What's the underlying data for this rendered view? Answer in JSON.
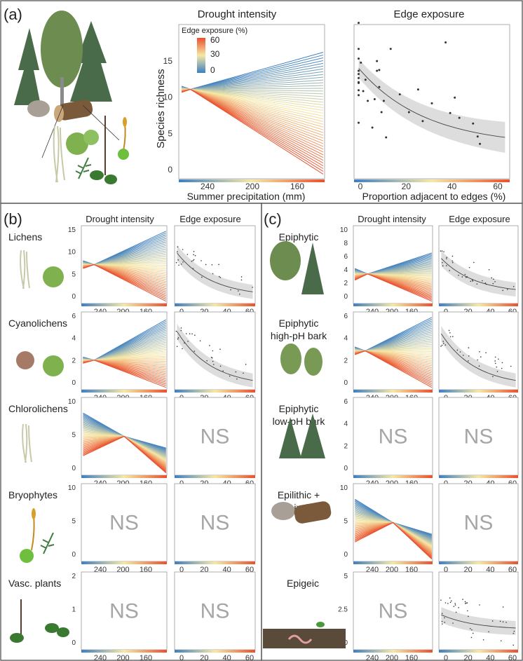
{
  "colors": {
    "cold": "#3d7fc2",
    "mid": "#f6e8a4",
    "hot": "#e9502d",
    "ns": "#a6a6a6",
    "band": "#d9d9d9",
    "frame": "#555555",
    "tree": "#4a6b4a",
    "leaf": "#7fb24f",
    "rock": "#a8a096",
    "log": "#7a5a3a"
  },
  "panel_a": {
    "label": "(a)",
    "drought": {
      "title": "Drought intensity",
      "ylabel": "Species richness",
      "xlabel": "Summer precipitation (mm)",
      "yticks": [
        "0",
        "5",
        "10",
        "15"
      ],
      "xticks": [
        "240",
        "200",
        "160"
      ],
      "legend_title": "Edge exposure (%)",
      "legend_ticks": [
        "60",
        "30",
        "0"
      ]
    },
    "edge": {
      "title": "Edge exposure",
      "xlabel": "Proportion adjacent to edges (%)",
      "xticks": [
        "0",
        "20",
        "40",
        "60"
      ]
    }
  },
  "panel_b": {
    "label": "(b)",
    "col_drought": "Drought intensity",
    "col_edge": "Edge exposure",
    "rows": [
      {
        "name": "Lichens",
        "yticks": [
          "0",
          "5",
          "10",
          "15"
        ]
      },
      {
        "name": "Cyanolichens",
        "yticks": [
          "0",
          "2",
          "4",
          "6"
        ]
      },
      {
        "name": "Chlorolichens",
        "yticks": [
          "0",
          "5",
          "10"
        ]
      },
      {
        "name": "Bryophytes",
        "yticks": [
          "0",
          "5",
          "10"
        ]
      },
      {
        "name": "Vasc. plants",
        "yticks": [
          "0",
          "1",
          "2"
        ]
      }
    ],
    "xticks_drought": [
      "240",
      "200",
      "160"
    ],
    "xticks_edge": [
      "0",
      "20",
      "40",
      "60"
    ],
    "ns_text": "NS"
  },
  "panel_c": {
    "label": "(c)",
    "col_drought": "Drought intensity",
    "col_edge": "Edge exposure",
    "rows": [
      {
        "name_lines": [
          "Epiphytic"
        ],
        "yticks": [
          "0",
          "2",
          "4",
          "6",
          "8",
          "10"
        ]
      },
      {
        "name_lines": [
          "Epiphytic",
          "high-pH bark"
        ],
        "yticks": [
          "0",
          "2",
          "4",
          "6"
        ]
      },
      {
        "name_lines": [
          "Epiphytic",
          "low-pH bark"
        ],
        "yticks": [
          "0",
          "2",
          "4",
          "6"
        ]
      },
      {
        "name_lines": [
          "Epilithic +",
          "Epixylic"
        ],
        "yticks": [
          "0",
          "5",
          "10"
        ]
      },
      {
        "name_lines": [
          "Epigeic"
        ],
        "yticks": [
          "0",
          "2.5",
          "5"
        ]
      }
    ],
    "xticks_drought": [
      "240",
      "200",
      "160"
    ],
    "xticks_edge": [
      "0",
      "20",
      "40",
      "60"
    ],
    "ns_text": "NS"
  },
  "chart_data": [
    {
      "type": "line",
      "title": "Drought intensity",
      "xlabel": "Summer precipitation (mm)",
      "ylabel": "Species richness",
      "xlim": [
        275,
        145
      ],
      "ylim": [
        -1,
        18
      ],
      "x_axis": "reversed",
      "legend_title": "Edge exposure (%)",
      "legend_range": [
        0,
        60
      ],
      "series_description": "fan of predicted lines, one per edge exposure level 0-60%",
      "series": [
        {
          "edge_exposure": 0,
          "x": [
            265,
            160
          ],
          "y": [
            11.3,
            15.8
          ]
        },
        {
          "edge_exposure": 30,
          "x": [
            265,
            160
          ],
          "y": [
            11.3,
            6.5
          ]
        },
        {
          "edge_exposure": 60,
          "x": [
            265,
            160
          ],
          "y": [
            11.3,
            0.2
          ]
        }
      ]
    },
    {
      "type": "scatter",
      "title": "Edge exposure",
      "xlabel": "Proportion adjacent to edges (%)",
      "ylabel": "Species richness",
      "xlim": [
        -2,
        66
      ],
      "ylim": [
        -1,
        18
      ],
      "points": [
        [
          0,
          18.2
        ],
        [
          0,
          15
        ],
        [
          0,
          13.8
        ],
        [
          0,
          12.3
        ],
        [
          0,
          11.9
        ],
        [
          0,
          11.4
        ],
        [
          0,
          10.9
        ],
        [
          0,
          10.8
        ],
        [
          0,
          9.9
        ],
        [
          0,
          9.3
        ],
        [
          0,
          5.9
        ],
        [
          1,
          13.3
        ],
        [
          2,
          9.8
        ],
        [
          3,
          11.2
        ],
        [
          4,
          8.6
        ],
        [
          6,
          5.3
        ],
        [
          7,
          8.8
        ],
        [
          8,
          13.5
        ],
        [
          8,
          12.3
        ],
        [
          9,
          12.4
        ],
        [
          9,
          10.3
        ],
        [
          10,
          7.2
        ],
        [
          11,
          8.6
        ],
        [
          12,
          4.1
        ],
        [
          14,
          15
        ],
        [
          18,
          9.4
        ],
        [
          22,
          7.2
        ],
        [
          26,
          10
        ],
        [
          28,
          6.1
        ],
        [
          32,
          8.3
        ],
        [
          38,
          15.8
        ],
        [
          40,
          7.1
        ],
        [
          42,
          9
        ],
        [
          44,
          6.5
        ],
        [
          50,
          5.8
        ],
        [
          52,
          4.2
        ],
        [
          53,
          3.3
        ]
      ],
      "fit": {
        "x": [
          0,
          62
        ],
        "y": [
          12.6,
          4.1
        ],
        "shape": "exponential decay with 95% CI band"
      }
    }
  ]
}
